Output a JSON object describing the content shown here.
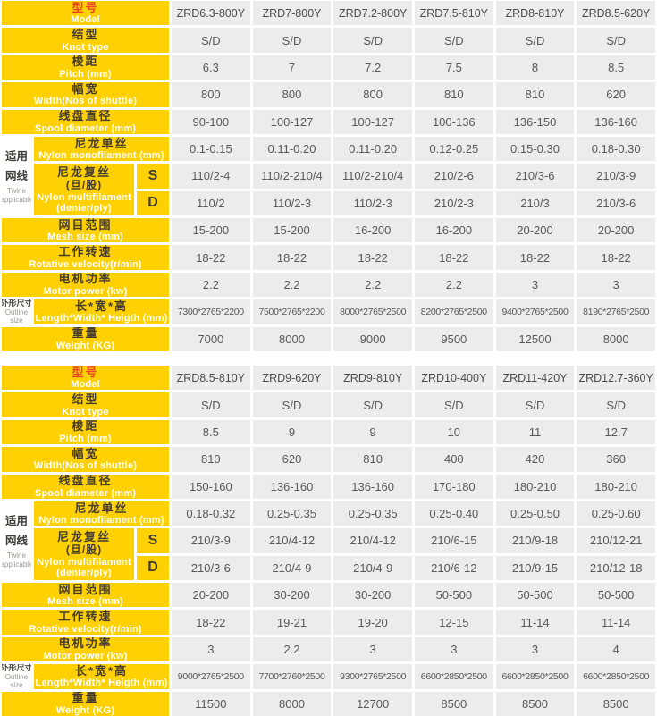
{
  "colors": {
    "header_yellow": "#FFD103",
    "model_label_red": "#E8402C",
    "label_text_dark": "#433B32",
    "label_text_english": "#FFFFFF",
    "data_cell_bg": "#ECECEC",
    "data_text": "#58585A",
    "background": "#FFFFFF"
  },
  "tables": [
    {
      "name": "spec-table-1",
      "side_group": {
        "zh_lines": [
          "适用",
          "网线"
        ],
        "en_lines": [
          "Twine",
          "applicable"
        ]
      },
      "rows": [
        {
          "kind": "full",
          "header": true,
          "zh_lines": [
            "型号"
          ],
          "en_lines": [
            "Model"
          ],
          "values": [
            "ZRD6.3-800Y",
            "ZRD7-800Y",
            "ZRD7.2-800Y",
            "ZRD7.5-810Y",
            "ZRD8-810Y",
            "ZRD8.5-620Y"
          ]
        },
        {
          "kind": "full",
          "zh_lines": [
            "结型"
          ],
          "en_lines": [
            "Knot type"
          ],
          "values": [
            "S/D",
            "S/D",
            "S/D",
            "S/D",
            "S/D",
            "S/D"
          ]
        },
        {
          "kind": "full",
          "zh_lines": [
            "梭距"
          ],
          "en_lines": [
            "Pitch (mm)"
          ],
          "values": [
            "6.3",
            "7",
            "7.2",
            "7.5",
            "8",
            "8.5"
          ]
        },
        {
          "kind": "full",
          "zh_lines": [
            "幅宽"
          ],
          "en_lines": [
            "Width(Nos of shuttle)"
          ],
          "values": [
            "800",
            "800",
            "800",
            "810",
            "810",
            "620"
          ]
        },
        {
          "kind": "full",
          "zh_lines": [
            "线盘直径"
          ],
          "en_lines": [
            "Spool diameter (mm)"
          ],
          "values": [
            "90-100",
            "100-127",
            "100-127",
            "100-136",
            "136-150",
            "136-160"
          ]
        },
        {
          "kind": "indent",
          "zh_lines": [
            "尼龙单丝"
          ],
          "en_lines": [
            "Nylon monofilament (mm)"
          ],
          "values": [
            "0.1-0.15",
            "0.11-0.20",
            "0.11-0.20",
            "0.12-0.25",
            "0.15-0.30",
            "0.18-0.30"
          ]
        },
        {
          "kind": "multi",
          "zh_lines": [
            "尼龙复丝",
            "(旦/股)"
          ],
          "en_lines": [
            "Nylon multifilament",
            "(denier/ply)"
          ],
          "sub": [
            {
              "label": "S",
              "values": [
                "110/2-4",
                "110/2-210/4",
                "110/2-210/4",
                "210/2-6",
                "210/3-6",
                "210/3-9"
              ]
            },
            {
              "label": "D",
              "values": [
                "110/2",
                "110/2-3",
                "110/2-3",
                "210/2-3",
                "210/3",
                "210/3-6"
              ]
            }
          ]
        },
        {
          "kind": "full",
          "zh_lines": [
            "网目范围"
          ],
          "en_lines": [
            "Mesh size (mm)"
          ],
          "values": [
            "15-200",
            "15-200",
            "16-200",
            "16-200",
            "20-200",
            "20-200"
          ]
        },
        {
          "kind": "full",
          "zh_lines": [
            "工作转速"
          ],
          "en_lines": [
            "Rotative velocity(r/min)"
          ],
          "values": [
            "18-22",
            "18-22",
            "18-22",
            "18-22",
            "18-22",
            "18-22"
          ]
        },
        {
          "kind": "full",
          "zh_lines": [
            "电机功率"
          ],
          "en_lines": [
            "Motor power (kw)"
          ],
          "values": [
            "2.2",
            "2.2",
            "2.2",
            "2.2",
            "3",
            "3"
          ]
        },
        {
          "kind": "side",
          "small": true,
          "side": {
            "zh_lines": [
              "外形尺寸"
            ],
            "en_lines": [
              "Outline",
              "size"
            ]
          },
          "zh_lines": [
            "长*宽*高"
          ],
          "en_lines": [
            "Length*Width* Heigth (mm)"
          ],
          "values": [
            "7300*2765*2200",
            "7500*2765*2200",
            "8000*2765*2500",
            "8200*2765*2500",
            "9400*2765*2500",
            "8190*2765*2500"
          ]
        },
        {
          "kind": "full",
          "zh_lines": [
            "重量"
          ],
          "en_lines": [
            "Weight (KG)"
          ],
          "values": [
            "7000",
            "8000",
            "9000",
            "9500",
            "12500",
            "8000"
          ]
        }
      ]
    },
    {
      "name": "spec-table-2",
      "side_group": {
        "zh_lines": [
          "适用",
          "网线"
        ],
        "en_lines": [
          "Twine",
          "applicable"
        ]
      },
      "rows": [
        {
          "kind": "full",
          "header": true,
          "zh_lines": [
            "型号"
          ],
          "en_lines": [
            "Model"
          ],
          "values": [
            "ZRD8.5-810Y",
            "ZRD9-620Y",
            "ZRD9-810Y",
            "ZRD10-400Y",
            "ZRD11-420Y",
            "ZRD12.7-360Y"
          ]
        },
        {
          "kind": "full",
          "zh_lines": [
            "结型"
          ],
          "en_lines": [
            "Knot type"
          ],
          "values": [
            "S/D",
            "S/D",
            "S/D",
            "S/D",
            "S/D",
            "S/D"
          ]
        },
        {
          "kind": "full",
          "zh_lines": [
            "梭距"
          ],
          "en_lines": [
            "Pitch (mm)"
          ],
          "values": [
            "8.5",
            "9",
            "9",
            "10",
            "11",
            "12.7"
          ]
        },
        {
          "kind": "full",
          "zh_lines": [
            "幅宽"
          ],
          "en_lines": [
            "Width(Nos of shuttle)"
          ],
          "values": [
            "810",
            "620",
            "810",
            "400",
            "420",
            "360"
          ]
        },
        {
          "kind": "full",
          "zh_lines": [
            "线盘直径"
          ],
          "en_lines": [
            "Spool diameter (mm)"
          ],
          "values": [
            "150-160",
            "136-160",
            "136-160",
            "170-180",
            "180-210",
            "180-210"
          ]
        },
        {
          "kind": "indent",
          "zh_lines": [
            "尼龙单丝"
          ],
          "en_lines": [
            "Nylon monofilament (mm)"
          ],
          "values": [
            "0.18-0.32",
            "0.25-0.35",
            "0.25-0.35",
            "0.25-0.40",
            "0.25-0.50",
            "0.25-0.60"
          ]
        },
        {
          "kind": "multi",
          "zh_lines": [
            "尼龙复丝",
            "(旦/股)"
          ],
          "en_lines": [
            "Nylon multifilament",
            "(denier/ply)"
          ],
          "sub": [
            {
              "label": "S",
              "values": [
                "210/3-9",
                "210/4-12",
                "210/4-12",
                "210/6-15",
                "210/9-18",
                "210/12-21"
              ]
            },
            {
              "label": "D",
              "values": [
                "210/3-6",
                "210/4-9",
                "210/4-9",
                "210/6-12",
                "210/9-15",
                "210/12-18"
              ]
            }
          ]
        },
        {
          "kind": "full",
          "zh_lines": [
            "网目范围"
          ],
          "en_lines": [
            "Mesh size (mm)"
          ],
          "values": [
            "20-200",
            "30-200",
            "30-200",
            "50-500",
            "50-500",
            "50-500"
          ]
        },
        {
          "kind": "full",
          "zh_lines": [
            "工作转速"
          ],
          "en_lines": [
            "Rotative velocity(r/min)"
          ],
          "values": [
            "18-22",
            "19-21",
            "19-20",
            "12-15",
            "11-14",
            "11-14"
          ]
        },
        {
          "kind": "full",
          "zh_lines": [
            "电机功率"
          ],
          "en_lines": [
            "Motor power (kw)"
          ],
          "values": [
            "3",
            "2.2",
            "3",
            "3",
            "3",
            "4"
          ]
        },
        {
          "kind": "side",
          "small": true,
          "side": {
            "zh_lines": [
              "外形尺寸"
            ],
            "en_lines": [
              "Outline",
              "size"
            ]
          },
          "zh_lines": [
            "长*宽*高"
          ],
          "en_lines": [
            "Length*Width* Heigth (mm)"
          ],
          "values": [
            "9000*2765*2500",
            "7700*2760*2500",
            "9300*2765*2500",
            "6600*2850*2500",
            "6600*2850*2500",
            "6600*2850*2500"
          ]
        },
        {
          "kind": "full",
          "zh_lines": [
            "重量"
          ],
          "en_lines": [
            "Weight (KG)"
          ],
          "values": [
            "11500",
            "8000",
            "12700",
            "8500",
            "8500",
            "8500"
          ]
        }
      ]
    }
  ]
}
